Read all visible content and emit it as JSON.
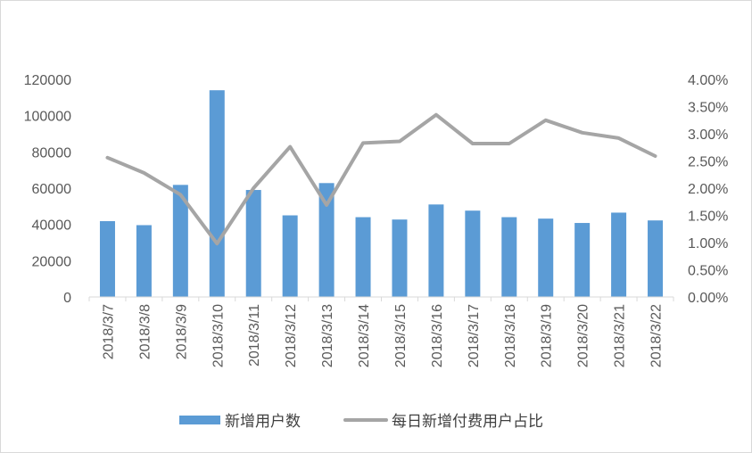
{
  "chart_data": {
    "type": "bar",
    "categories": [
      "2018/3/7",
      "2018/3/8",
      "2018/3/9",
      "2018/3/10",
      "2018/3/11",
      "2018/3/12",
      "2018/3/13",
      "2018/3/14",
      "2018/3/15",
      "2018/3/16",
      "2018/3/17",
      "2018/3/18",
      "2018/3/19",
      "2018/3/20",
      "2018/3/21",
      "2018/3/22"
    ],
    "series": [
      {
        "name": "新增用户数",
        "type": "bar",
        "axis": "left",
        "color": "#5b9bd5",
        "values": [
          41800,
          39600,
          61800,
          114000,
          59000,
          45000,
          62800,
          44000,
          42700,
          51000,
          47600,
          44000,
          43200,
          40800,
          46500,
          42200
        ]
      },
      {
        "name": "每日新增付费用户占比",
        "type": "line",
        "axis": "right",
        "color": "#a5a5a5",
        "values": [
          0.0256,
          0.0228,
          0.0188,
          0.0098,
          0.02,
          0.0276,
          0.0169,
          0.0283,
          0.0286,
          0.0335,
          0.0282,
          0.0282,
          0.0325,
          0.0302,
          0.0292,
          0.0259
        ]
      }
    ],
    "y_left": {
      "ylim": [
        0,
        120000
      ],
      "ticks": [
        "0",
        "20000",
        "40000",
        "60000",
        "80000",
        "100000",
        "120000"
      ]
    },
    "y_right": {
      "ylim": [
        0,
        0.04
      ],
      "ticks": [
        "0.00%",
        "0.50%",
        "1.00%",
        "1.50%",
        "2.00%",
        "2.50%",
        "3.00%",
        "3.50%",
        "4.00%"
      ]
    },
    "grid": false,
    "legend_position": "bottom",
    "title": "",
    "xlabel": "",
    "ylabel": ""
  }
}
